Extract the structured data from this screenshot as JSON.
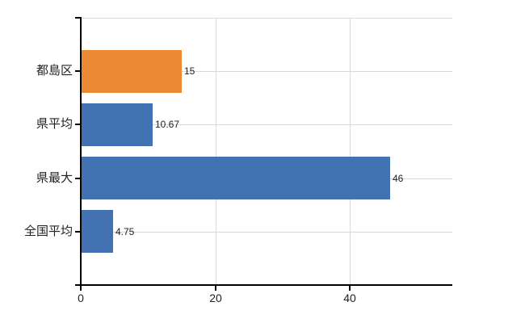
{
  "chart_data": {
    "type": "bar",
    "orientation": "horizontal",
    "title": "",
    "xlabel": "",
    "ylabel": "",
    "categories": [
      "都島区",
      "県平均",
      "県最大",
      "全国平均"
    ],
    "values": [
      15,
      10.67,
      46,
      4.75
    ],
    "value_labels": [
      "15",
      "10.67",
      "46",
      "4.75"
    ],
    "series_colors": [
      "#EC8933",
      "#4272B2",
      "#4272B2",
      "#4272B2"
    ],
    "highlight_index": 0,
    "highlight_color": "#EC8933",
    "bar_color": "#4272B2",
    "x_ticks": [
      0,
      20,
      40
    ],
    "x_tick_labels": [
      "0",
      "20",
      "40"
    ],
    "xlim": [
      0,
      55.3
    ],
    "grid": true,
    "grid_color": "#D9D9D9",
    "axis_color": "#000000",
    "text_color": "#222222",
    "legend": false
  }
}
